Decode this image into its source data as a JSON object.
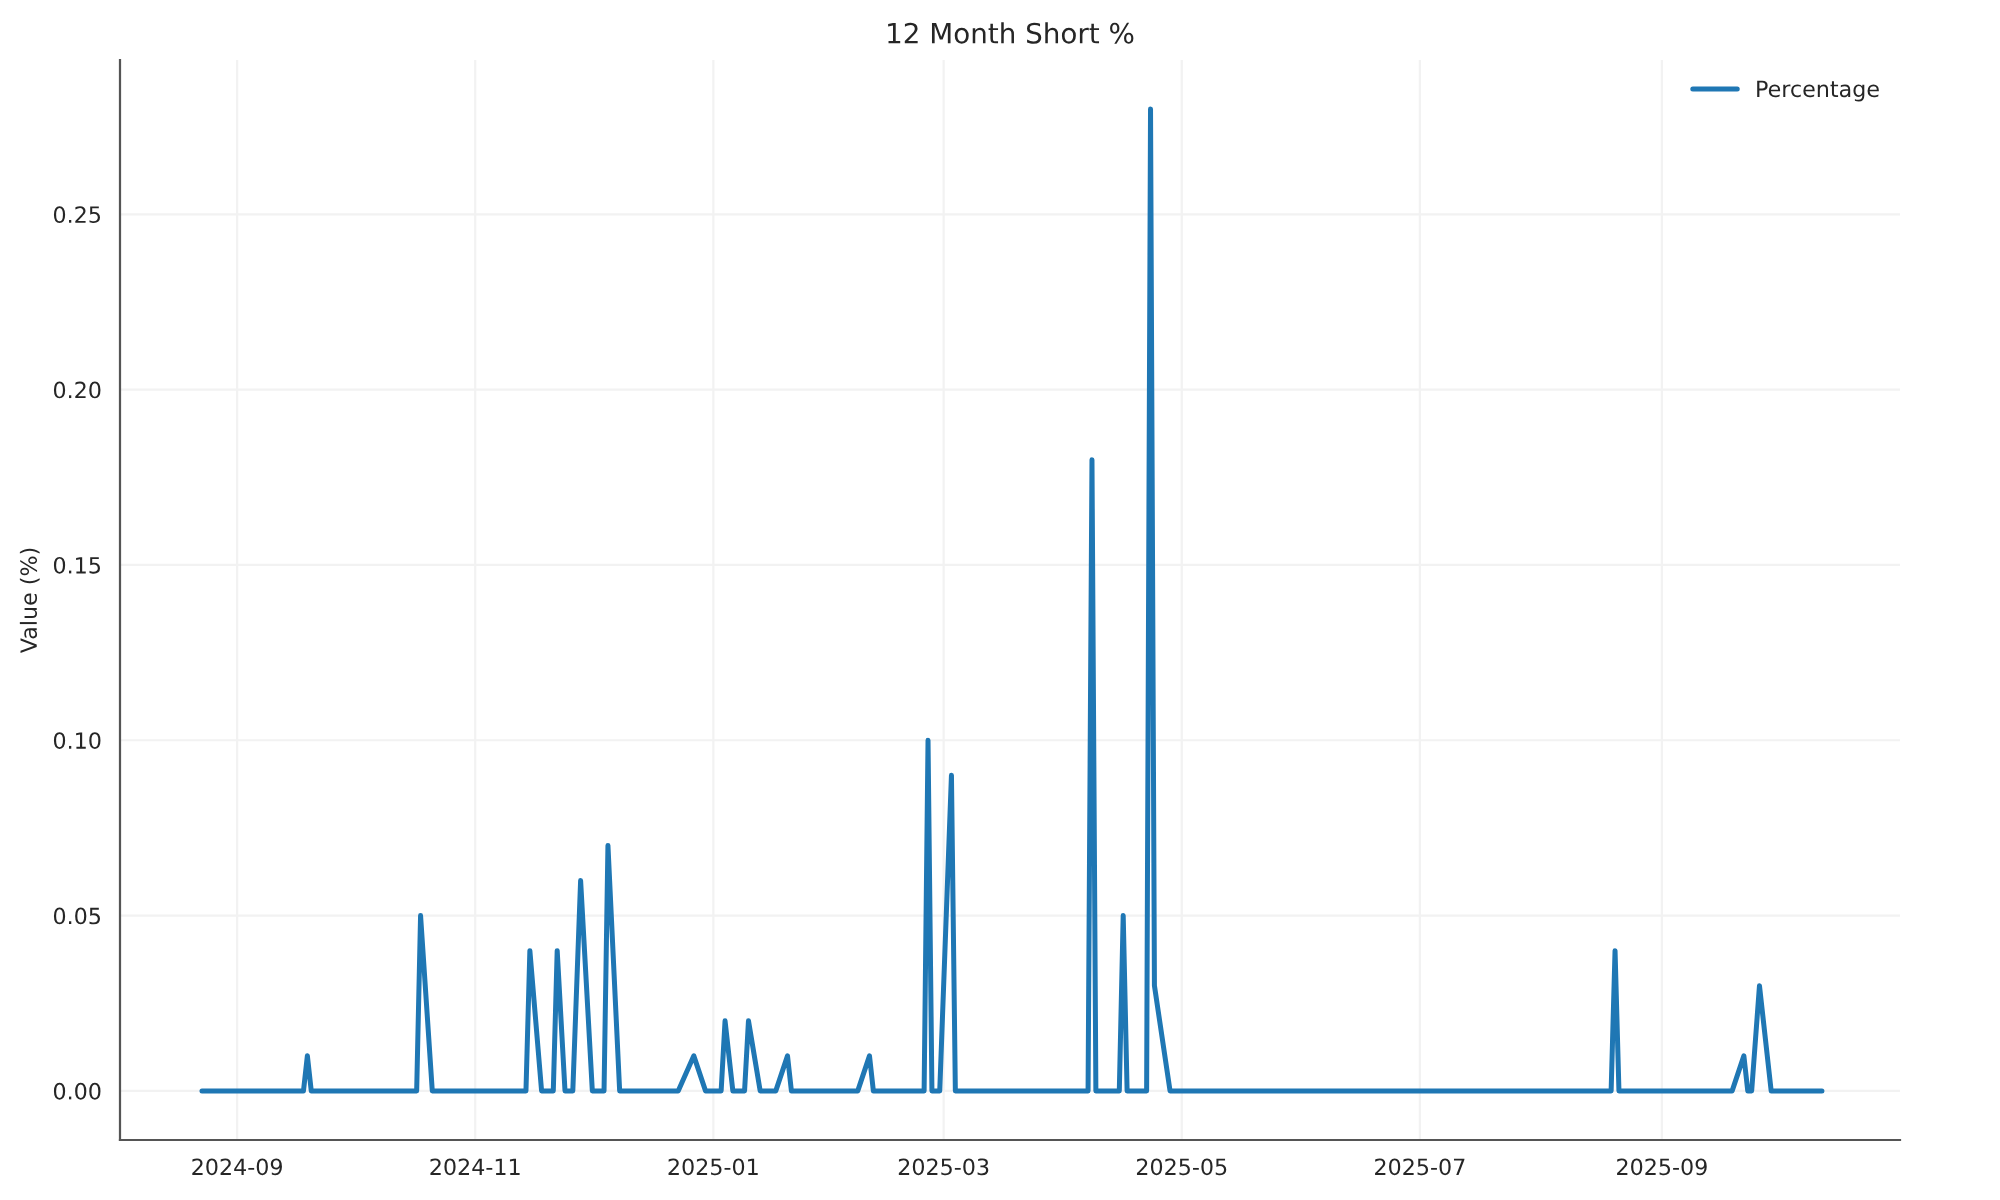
{
  "chart_data": {
    "type": "line",
    "title": "12 Month Short %",
    "ylabel": "Value (%)",
    "x": [
      "2024-08-23",
      "2024-09-18",
      "2024-09-19",
      "2024-09-20",
      "2024-10-17",
      "2024-10-18",
      "2024-10-21",
      "2024-11-14",
      "2024-11-15",
      "2024-11-18",
      "2024-11-21",
      "2024-11-22",
      "2024-11-24",
      "2024-11-26",
      "2024-11-28",
      "2024-12-01",
      "2024-12-04",
      "2024-12-05",
      "2024-12-08",
      "2024-12-23",
      "2024-12-27",
      "2024-12-30",
      "2025-01-03",
      "2025-01-04",
      "2025-01-06",
      "2025-01-09",
      "2025-01-10",
      "2025-01-13",
      "2025-01-17",
      "2025-01-20",
      "2025-01-21",
      "2025-02-07",
      "2025-02-10",
      "2025-02-11",
      "2025-02-24",
      "2025-02-25",
      "2025-02-26",
      "2025-02-28",
      "2025-03-03",
      "2025-03-04",
      "2025-04-07",
      "2025-04-08",
      "2025-04-09",
      "2025-04-15",
      "2025-04-16",
      "2025-04-17",
      "2025-04-22",
      "2025-04-23",
      "2025-04-24",
      "2025-04-28",
      "2025-08-19",
      "2025-08-20",
      "2025-08-21",
      "2025-09-19",
      "2025-09-22",
      "2025-09-23",
      "2025-09-24",
      "2025-09-26",
      "2025-09-29",
      "2025-10-12"
    ],
    "series": [
      {
        "name": "Percentage",
        "color": "#1f77b4",
        "values": [
          0,
          0,
          0.01,
          0,
          0,
          0.05,
          0,
          0,
          0.04,
          0,
          0,
          0.04,
          0,
          0,
          0.06,
          0,
          0,
          0.07,
          0,
          0,
          0.01,
          0,
          0,
          0.02,
          0,
          0,
          0.02,
          0,
          0,
          0.01,
          0,
          0,
          0.01,
          0,
          0,
          0.1,
          0,
          0,
          0.09,
          0,
          0,
          0.18,
          0,
          0,
          0.05,
          0,
          0,
          0.28,
          0.03,
          0,
          0,
          0.04,
          0,
          0,
          0.01,
          0,
          0,
          0.03,
          0,
          0
        ]
      }
    ],
    "xlim": [
      "2024-08-02",
      "2025-11-01"
    ],
    "ylim": [
      -0.014,
      0.294
    ],
    "xticks": [
      {
        "value": "2024-09-01",
        "label": "2024-09"
      },
      {
        "value": "2024-11-01",
        "label": "2024-11"
      },
      {
        "value": "2025-01-01",
        "label": "2025-01"
      },
      {
        "value": "2025-03-01",
        "label": "2025-03"
      },
      {
        "value": "2025-05-01",
        "label": "2025-05"
      },
      {
        "value": "2025-07-01",
        "label": "2025-07"
      },
      {
        "value": "2025-09-01",
        "label": "2025-09"
      }
    ],
    "yticks": [
      {
        "value": 0,
        "label": "0.00"
      },
      {
        "value": 0.05,
        "label": "0.05"
      },
      {
        "value": 0.1,
        "label": "0.10"
      },
      {
        "value": 0.15,
        "label": "0.15"
      },
      {
        "value": 0.2,
        "label": "0.20"
      },
      {
        "value": 0.25,
        "label": "0.25"
      }
    ],
    "grid": true,
    "legend": "top right",
    "line_style": "solid",
    "marker": "none"
  }
}
